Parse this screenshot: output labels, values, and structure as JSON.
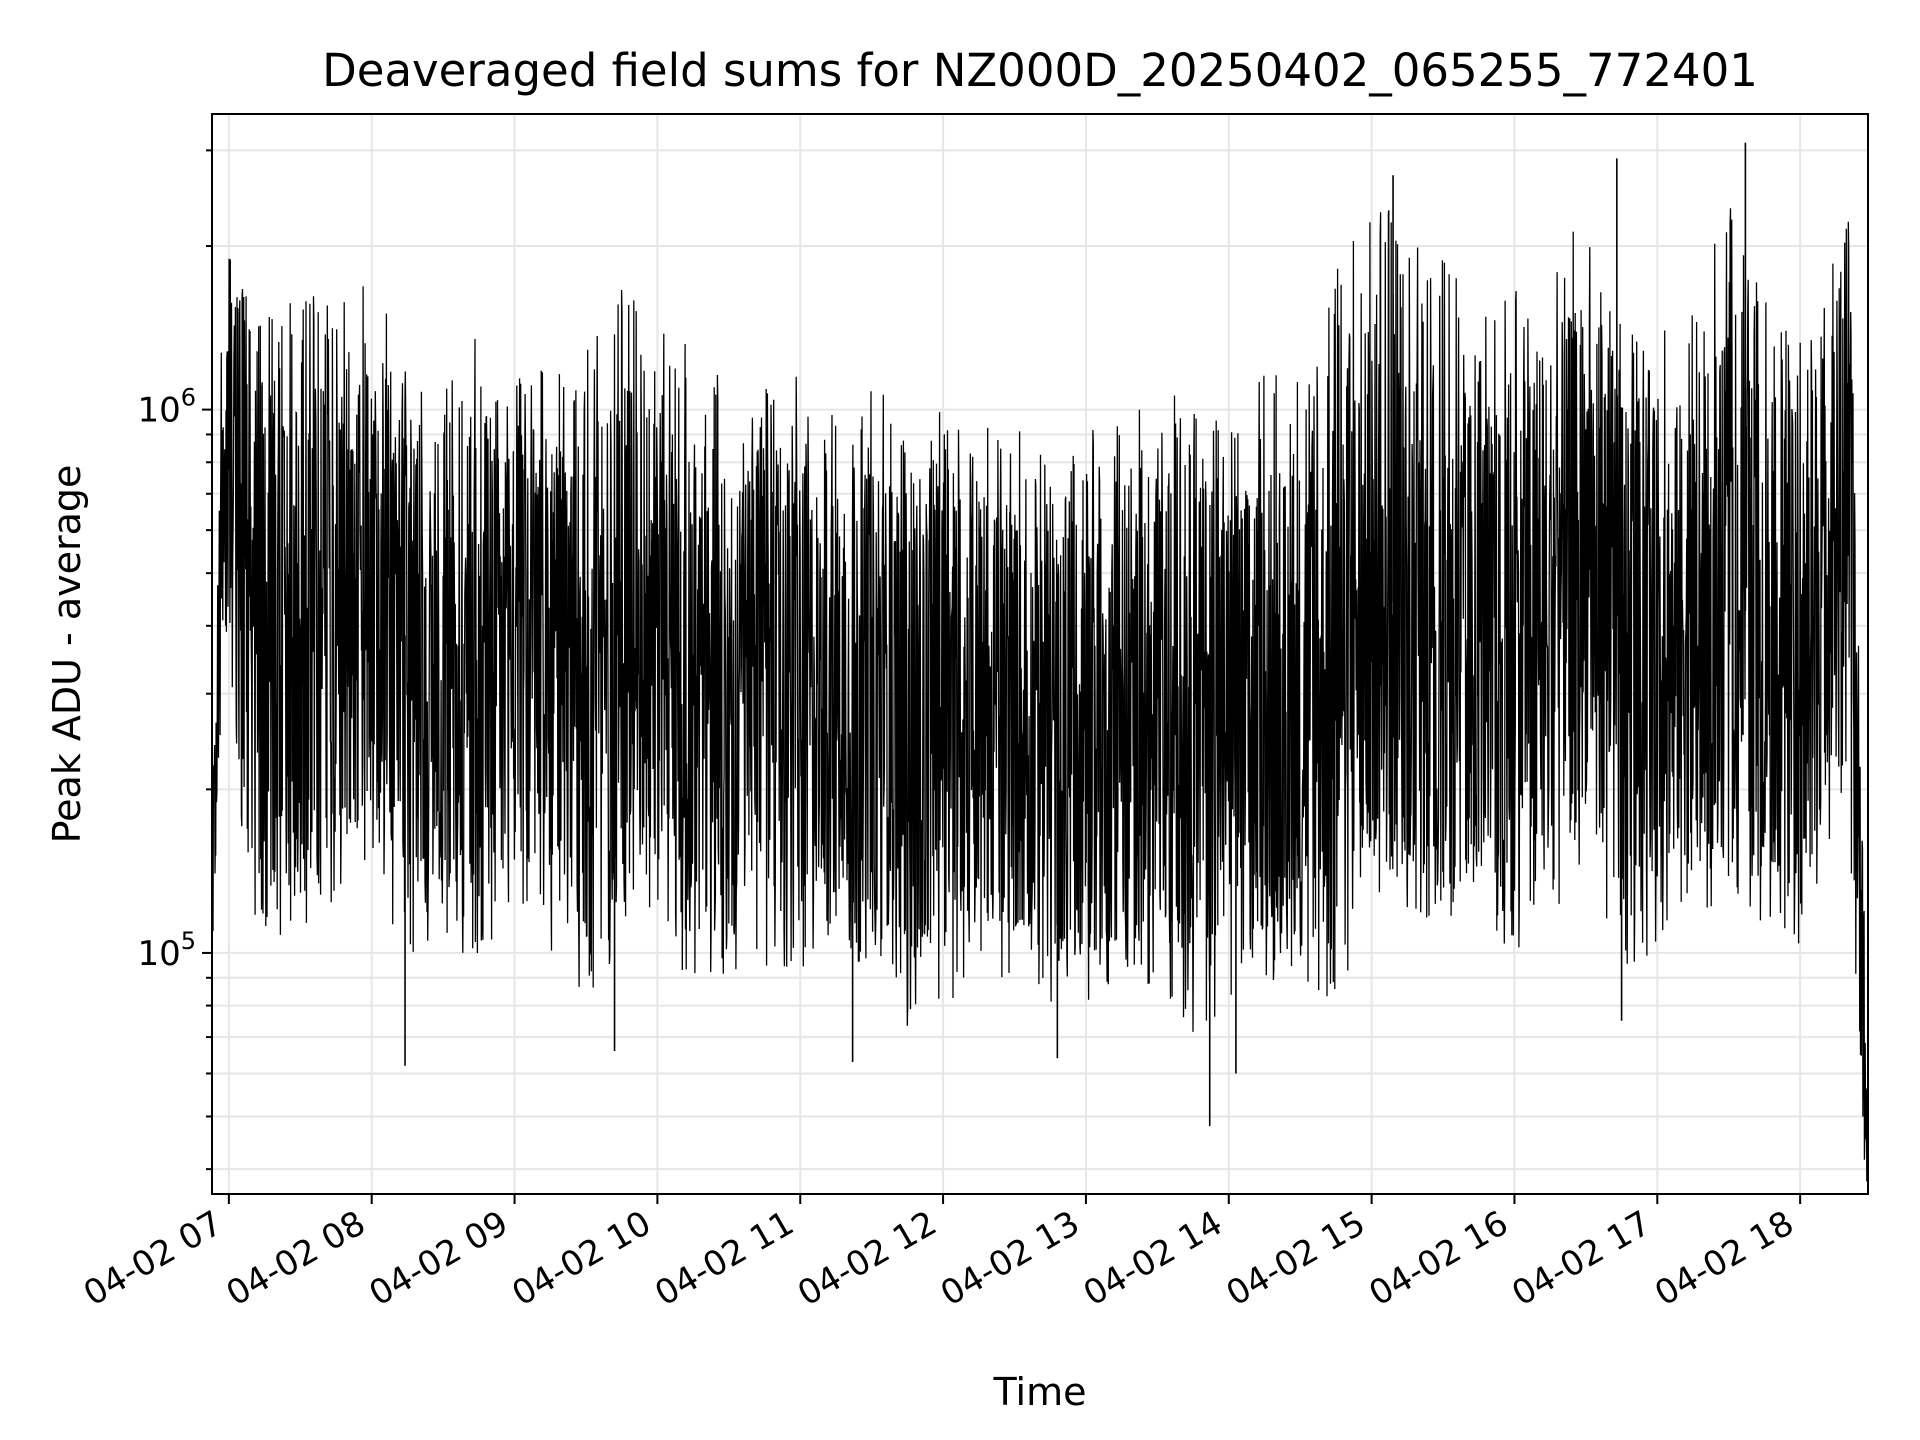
{
  "chart_data": {
    "type": "line",
    "title": "Deaveraged field sums for NZ000D_20250402_065255_772401",
    "xlabel": "Time",
    "ylabel": "Peak ADU - average",
    "yscale": "log",
    "xlim": [
      "2025-04-02 06:52:55",
      "2025-04-02 18:28:30"
    ],
    "ylim": [
      36000,
      3500000
    ],
    "grid": true,
    "x_tick_labels": [
      {
        "value": "2025-04-02 07:00",
        "label": "04-02 07"
      },
      {
        "value": "2025-04-02 08:00",
        "label": "04-02 08"
      },
      {
        "value": "2025-04-02 09:00",
        "label": "04-02 09"
      },
      {
        "value": "2025-04-02 10:00",
        "label": "04-02 10"
      },
      {
        "value": "2025-04-02 11:00",
        "label": "04-02 11"
      },
      {
        "value": "2025-04-02 12:00",
        "label": "04-02 12"
      },
      {
        "value": "2025-04-02 13:00",
        "label": "04-02 13"
      },
      {
        "value": "2025-04-02 14:00",
        "label": "04-02 14"
      },
      {
        "value": "2025-04-02 15:00",
        "label": "04-02 15"
      },
      {
        "value": "2025-04-02 16:00",
        "label": "04-02 16"
      },
      {
        "value": "2025-04-02 17:00",
        "label": "04-02 17"
      },
      {
        "value": "2025-04-02 18:00",
        "label": "04-02 18"
      }
    ],
    "y_tick_labels": [
      {
        "value": 100000,
        "base": "10",
        "exp": "5"
      },
      {
        "value": 1000000,
        "base": "10",
        "exp": "6"
      }
    ],
    "series": [
      {
        "color": "#000000",
        "x": [
          "2025-04-02 06:53",
          "2025-04-02 06:58",
          "2025-04-02 07:05",
          "2025-04-02 07:15",
          "2025-04-02 07:30",
          "2025-04-02 07:45",
          "2025-04-02 08:00",
          "2025-04-02 08:15",
          "2025-04-02 08:30",
          "2025-04-02 08:45",
          "2025-04-02 09:00",
          "2025-04-02 09:15",
          "2025-04-02 09:30",
          "2025-04-02 09:45",
          "2025-04-02 10:00",
          "2025-04-02 10:15",
          "2025-04-02 10:30",
          "2025-04-02 10:45",
          "2025-04-02 11:00",
          "2025-04-02 11:15",
          "2025-04-02 11:30",
          "2025-04-02 11:45",
          "2025-04-02 12:00",
          "2025-04-02 12:15",
          "2025-04-02 12:30",
          "2025-04-02 12:45",
          "2025-04-02 13:00",
          "2025-04-02 13:15",
          "2025-04-02 13:30",
          "2025-04-02 13:45",
          "2025-04-02 14:00",
          "2025-04-02 14:15",
          "2025-04-02 14:30",
          "2025-04-02 14:45",
          "2025-04-02 15:00",
          "2025-04-02 15:15",
          "2025-04-02 15:30",
          "2025-04-02 15:45",
          "2025-04-02 16:00",
          "2025-04-02 16:15",
          "2025-04-02 16:30",
          "2025-04-02 16:45",
          "2025-04-02 17:00",
          "2025-04-02 17:15",
          "2025-04-02 17:30",
          "2025-04-02 17:45",
          "2025-04-02 18:00",
          "2025-04-02 18:15",
          "2025-04-02 18:20",
          "2025-04-02 18:25",
          "2025-04-02 18:28"
        ],
        "y": [
          110000,
          900000,
          700000,
          400000,
          350000,
          400000,
          450000,
          380000,
          300000,
          380000,
          420000,
          340000,
          300000,
          380000,
          450000,
          300000,
          270000,
          350000,
          300000,
          330000,
          300000,
          280000,
          280000,
          290000,
          260000,
          240000,
          250000,
          260000,
          270000,
          300000,
          280000,
          280000,
          300000,
          320000,
          480000,
          420000,
          400000,
          380000,
          350000,
          480000,
          550000,
          400000,
          370000,
          400000,
          450000,
          400000,
          360000,
          600000,
          900000,
          150000,
          40000
        ],
        "y_upper": [
          300000,
          2200000,
          1900000,
          1500000,
          1700000,
          1600000,
          1800000,
          1200000,
          1100000,
          1400000,
          1300000,
          1200000,
          1300000,
          1700000,
          1600000,
          1300000,
          1200000,
          1100000,
          1200000,
          1000000,
          1100000,
          1000000,
          1000000,
          1000000,
          1000000,
          900000,
          1000000,
          1000000,
          1100000,
          1200000,
          1000000,
          1200000,
          1300000,
          1800000,
          2600000,
          2200000,
          1900000,
          1600000,
          1700000,
          2000000,
          2300000,
          1700000,
          1400000,
          1600000,
          2400000,
          1700000,
          1500000,
          2200000,
          2500000,
          500000,
          70000
        ],
        "y_lower": [
          100000,
          400000,
          150000,
          100000,
          110000,
          120000,
          150000,
          90000,
          110000,
          90000,
          120000,
          100000,
          80000,
          100000,
          120000,
          80000,
          85000,
          95000,
          90000,
          100000,
          90000,
          70000,
          80000,
          85000,
          90000,
          75000,
          80000,
          90000,
          85000,
          70000,
          80000,
          90000,
          85000,
          80000,
          120000,
          120000,
          110000,
          110000,
          100000,
          120000,
          130000,
          90000,
          100000,
          110000,
          130000,
          110000,
          100000,
          180000,
          150000,
          50000,
          38000
        ],
        "spikes": [
          {
            "x": "2025-04-02 08:14",
            "y": 62000
          },
          {
            "x": "2025-04-02 09:42",
            "y": 66000
          },
          {
            "x": "2025-04-02 11:22",
            "y": 63000
          },
          {
            "x": "2025-04-02 12:48",
            "y": 64000
          },
          {
            "x": "2025-04-02 13:52",
            "y": 48000
          },
          {
            "x": "2025-04-02 14:03",
            "y": 60000
          },
          {
            "x": "2025-04-02 16:45",
            "y": 75000
          },
          {
            "x": "2025-04-02 17:37",
            "y": 3100000
          },
          {
            "x": "2025-04-02 16:43",
            "y": 2900000
          },
          {
            "x": "2025-04-02 15:09",
            "y": 2700000
          }
        ]
      }
    ]
  }
}
